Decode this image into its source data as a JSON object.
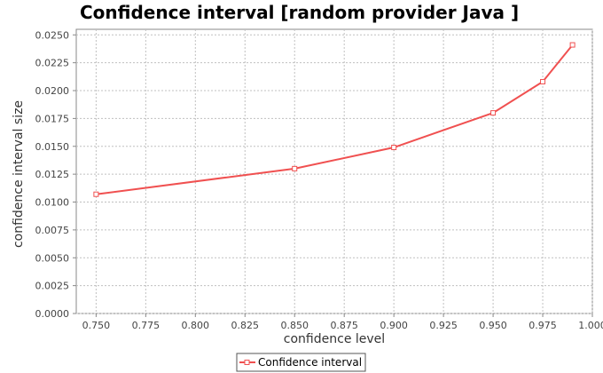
{
  "chart_data": {
    "type": "line",
    "title": "Confidence interval [random provider Java ]",
    "xlabel": "confidence level",
    "ylabel": "confidence interval size",
    "xlim": [
      0.74,
      1.0
    ],
    "ylim": [
      0.0,
      0.0255
    ],
    "x_ticks": [
      "0.750",
      "0.775",
      "0.800",
      "0.825",
      "0.850",
      "0.875",
      "0.900",
      "0.925",
      "0.950",
      "0.975",
      "1.000"
    ],
    "y_ticks": [
      "0.0000",
      "0.0025",
      "0.0050",
      "0.0075",
      "0.0100",
      "0.0125",
      "0.0150",
      "0.0175",
      "0.0200",
      "0.0225",
      "0.0250"
    ],
    "grid": true,
    "legend_position": "bottom-center",
    "series": [
      {
        "name": "Confidence interval",
        "color": "#f05050",
        "x": [
          0.75,
          0.85,
          0.9,
          0.95,
          0.975,
          0.99
        ],
        "y": [
          0.0107,
          0.013,
          0.0149,
          0.018,
          0.0208,
          0.0241
        ]
      }
    ]
  }
}
